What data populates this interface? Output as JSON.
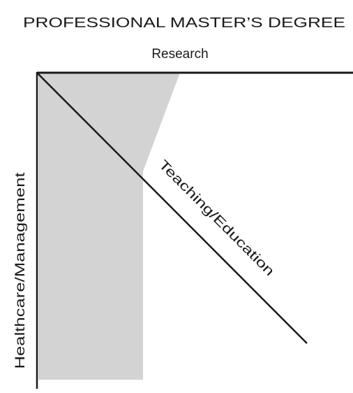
{
  "diagram": {
    "title": "PROFESSIONAL MASTER’S DEGREE",
    "top_axis_label": "Research",
    "left_axis_label": "Healthcare/Management",
    "diagonal_axis_label": "Teaching/Education",
    "colors": {
      "shaded_region": "#d3d3d3",
      "lines": "#1a1a1a",
      "background": "#ffffff"
    }
  }
}
